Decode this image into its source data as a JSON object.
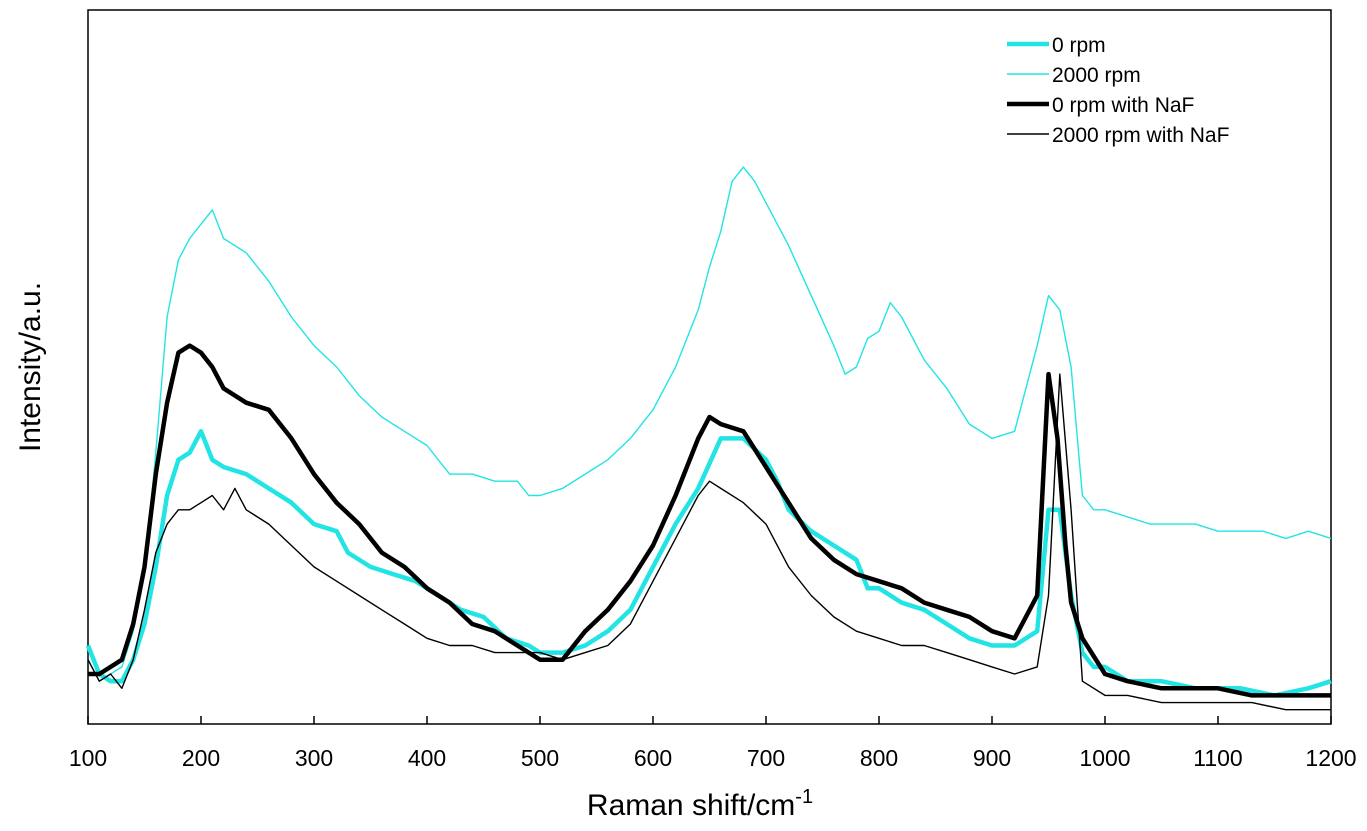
{
  "chart_data": {
    "type": "line",
    "title": "",
    "xlabel": "Raman shift/cm",
    "xlabel_superscript": "-1",
    "ylabel": "Intensity/a.u.",
    "xlim": [
      100,
      1200
    ],
    "ylim": [
      0,
      100
    ],
    "xticks": [
      "100",
      "200",
      "300",
      "400",
      "500",
      "600",
      "700",
      "800",
      "900",
      "1000",
      "1100",
      "1200"
    ],
    "yticks_shown": false,
    "grid": false,
    "legend_position": "top-right",
    "series": [
      {
        "name": "0 rpm",
        "color": "#22e4e4",
        "style": "thick",
        "points": [
          [
            100,
            11
          ],
          [
            110,
            7
          ],
          [
            120,
            6
          ],
          [
            130,
            6
          ],
          [
            140,
            9
          ],
          [
            150,
            14
          ],
          [
            160,
            22
          ],
          [
            170,
            32
          ],
          [
            180,
            37
          ],
          [
            190,
            38
          ],
          [
            200,
            41
          ],
          [
            205,
            39
          ],
          [
            210,
            37
          ],
          [
            220,
            36
          ],
          [
            240,
            35
          ],
          [
            260,
            33
          ],
          [
            280,
            31
          ],
          [
            300,
            28
          ],
          [
            320,
            27
          ],
          [
            330,
            24
          ],
          [
            350,
            22
          ],
          [
            370,
            21
          ],
          [
            390,
            20
          ],
          [
            410,
            18
          ],
          [
            430,
            16
          ],
          [
            450,
            15
          ],
          [
            470,
            12
          ],
          [
            490,
            11
          ],
          [
            500,
            10
          ],
          [
            520,
            10
          ],
          [
            540,
            11
          ],
          [
            560,
            13
          ],
          [
            580,
            16
          ],
          [
            600,
            22
          ],
          [
            620,
            28
          ],
          [
            640,
            33
          ],
          [
            660,
            40
          ],
          [
            680,
            40
          ],
          [
            700,
            37
          ],
          [
            710,
            34
          ],
          [
            720,
            30
          ],
          [
            740,
            27
          ],
          [
            760,
            25
          ],
          [
            780,
            23
          ],
          [
            790,
            19
          ],
          [
            800,
            19
          ],
          [
            820,
            17
          ],
          [
            840,
            16
          ],
          [
            860,
            14
          ],
          [
            880,
            12
          ],
          [
            900,
            11
          ],
          [
            920,
            11
          ],
          [
            940,
            13
          ],
          [
            950,
            30
          ],
          [
            960,
            30
          ],
          [
            970,
            18
          ],
          [
            980,
            10
          ],
          [
            990,
            8
          ],
          [
            1000,
            8
          ],
          [
            1020,
            6
          ],
          [
            1050,
            6
          ],
          [
            1080,
            5
          ],
          [
            1100,
            5
          ],
          [
            1120,
            5
          ],
          [
            1150,
            4
          ],
          [
            1180,
            5
          ],
          [
            1200,
            6
          ]
        ]
      },
      {
        "name": "2000 rpm",
        "color": "#22e4e4",
        "style": "thin",
        "points": [
          [
            100,
            9
          ],
          [
            110,
            6
          ],
          [
            120,
            7
          ],
          [
            130,
            8
          ],
          [
            140,
            13
          ],
          [
            150,
            21
          ],
          [
            160,
            38
          ],
          [
            170,
            57
          ],
          [
            180,
            65
          ],
          [
            190,
            68
          ],
          [
            200,
            70
          ],
          [
            210,
            72
          ],
          [
            220,
            68
          ],
          [
            230,
            67
          ],
          [
            240,
            66
          ],
          [
            250,
            64
          ],
          [
            260,
            62
          ],
          [
            280,
            57
          ],
          [
            300,
            53
          ],
          [
            320,
            50
          ],
          [
            340,
            46
          ],
          [
            360,
            43
          ],
          [
            380,
            41
          ],
          [
            400,
            39
          ],
          [
            420,
            35
          ],
          [
            440,
            35
          ],
          [
            460,
            34
          ],
          [
            480,
            34
          ],
          [
            490,
            32
          ],
          [
            500,
            32
          ],
          [
            520,
            33
          ],
          [
            540,
            35
          ],
          [
            560,
            37
          ],
          [
            580,
            40
          ],
          [
            600,
            44
          ],
          [
            620,
            50
          ],
          [
            640,
            58
          ],
          [
            650,
            64
          ],
          [
            660,
            69
          ],
          [
            670,
            76
          ],
          [
            680,
            78
          ],
          [
            690,
            76
          ],
          [
            700,
            73
          ],
          [
            720,
            67
          ],
          [
            740,
            60
          ],
          [
            760,
            53
          ],
          [
            770,
            49
          ],
          [
            780,
            50
          ],
          [
            790,
            54
          ],
          [
            800,
            55
          ],
          [
            810,
            59
          ],
          [
            820,
            57
          ],
          [
            840,
            51
          ],
          [
            860,
            47
          ],
          [
            880,
            42
          ],
          [
            900,
            40
          ],
          [
            920,
            41
          ],
          [
            940,
            53
          ],
          [
            950,
            60
          ],
          [
            960,
            58
          ],
          [
            970,
            50
          ],
          [
            980,
            32
          ],
          [
            990,
            30
          ],
          [
            1000,
            30
          ],
          [
            1020,
            29
          ],
          [
            1040,
            28
          ],
          [
            1060,
            28
          ],
          [
            1080,
            28
          ],
          [
            1100,
            27
          ],
          [
            1120,
            27
          ],
          [
            1140,
            27
          ],
          [
            1160,
            26
          ],
          [
            1180,
            27
          ],
          [
            1200,
            26
          ]
        ]
      },
      {
        "name": "0 rpm with NaF",
        "color": "#000000",
        "style": "thick",
        "points": [
          [
            100,
            7
          ],
          [
            110,
            7
          ],
          [
            120,
            8
          ],
          [
            130,
            9
          ],
          [
            140,
            14
          ],
          [
            150,
            22
          ],
          [
            160,
            35
          ],
          [
            170,
            45
          ],
          [
            180,
            52
          ],
          [
            190,
            53
          ],
          [
            200,
            52
          ],
          [
            210,
            50
          ],
          [
            220,
            47
          ],
          [
            240,
            45
          ],
          [
            260,
            44
          ],
          [
            280,
            40
          ],
          [
            300,
            35
          ],
          [
            320,
            31
          ],
          [
            340,
            28
          ],
          [
            360,
            24
          ],
          [
            380,
            22
          ],
          [
            400,
            19
          ],
          [
            420,
            17
          ],
          [
            440,
            14
          ],
          [
            460,
            13
          ],
          [
            480,
            11
          ],
          [
            500,
            9
          ],
          [
            520,
            9
          ],
          [
            540,
            13
          ],
          [
            560,
            16
          ],
          [
            580,
            20
          ],
          [
            600,
            25
          ],
          [
            620,
            32
          ],
          [
            640,
            40
          ],
          [
            650,
            43
          ],
          [
            660,
            42
          ],
          [
            680,
            41
          ],
          [
            700,
            36
          ],
          [
            720,
            31
          ],
          [
            740,
            26
          ],
          [
            760,
            23
          ],
          [
            780,
            21
          ],
          [
            800,
            20
          ],
          [
            820,
            19
          ],
          [
            840,
            17
          ],
          [
            860,
            16
          ],
          [
            880,
            15
          ],
          [
            900,
            13
          ],
          [
            920,
            12
          ],
          [
            940,
            18
          ],
          [
            950,
            49
          ],
          [
            958,
            40
          ],
          [
            965,
            25
          ],
          [
            970,
            17
          ],
          [
            980,
            12
          ],
          [
            1000,
            7
          ],
          [
            1020,
            6
          ],
          [
            1050,
            5
          ],
          [
            1080,
            5
          ],
          [
            1100,
            5
          ],
          [
            1130,
            4
          ],
          [
            1160,
            4
          ],
          [
            1200,
            4
          ]
        ]
      },
      {
        "name": "2000 rpm with NaF",
        "color": "#000000",
        "style": "thin",
        "points": [
          [
            100,
            9
          ],
          [
            110,
            6
          ],
          [
            120,
            7
          ],
          [
            130,
            5
          ],
          [
            140,
            9
          ],
          [
            150,
            16
          ],
          [
            160,
            24
          ],
          [
            170,
            28
          ],
          [
            180,
            30
          ],
          [
            190,
            30
          ],
          [
            200,
            31
          ],
          [
            210,
            32
          ],
          [
            220,
            30
          ],
          [
            230,
            33
          ],
          [
            240,
            30
          ],
          [
            260,
            28
          ],
          [
            280,
            25
          ],
          [
            300,
            22
          ],
          [
            320,
            20
          ],
          [
            340,
            18
          ],
          [
            360,
            16
          ],
          [
            380,
            14
          ],
          [
            400,
            12
          ],
          [
            420,
            11
          ],
          [
            440,
            11
          ],
          [
            460,
            10
          ],
          [
            480,
            10
          ],
          [
            500,
            10
          ],
          [
            520,
            9
          ],
          [
            540,
            10
          ],
          [
            560,
            11
          ],
          [
            580,
            14
          ],
          [
            600,
            20
          ],
          [
            620,
            26
          ],
          [
            640,
            32
          ],
          [
            650,
            34
          ],
          [
            660,
            33
          ],
          [
            680,
            31
          ],
          [
            700,
            28
          ],
          [
            720,
            22
          ],
          [
            740,
            18
          ],
          [
            760,
            15
          ],
          [
            780,
            13
          ],
          [
            800,
            12
          ],
          [
            820,
            11
          ],
          [
            840,
            11
          ],
          [
            860,
            10
          ],
          [
            880,
            9
          ],
          [
            900,
            8
          ],
          [
            920,
            7
          ],
          [
            940,
            8
          ],
          [
            950,
            18
          ],
          [
            960,
            49
          ],
          [
            970,
            30
          ],
          [
            980,
            6
          ],
          [
            1000,
            4
          ],
          [
            1020,
            4
          ],
          [
            1050,
            3
          ],
          [
            1080,
            3
          ],
          [
            1100,
            3
          ],
          [
            1130,
            3
          ],
          [
            1160,
            2
          ],
          [
            1200,
            2
          ]
        ]
      }
    ]
  }
}
